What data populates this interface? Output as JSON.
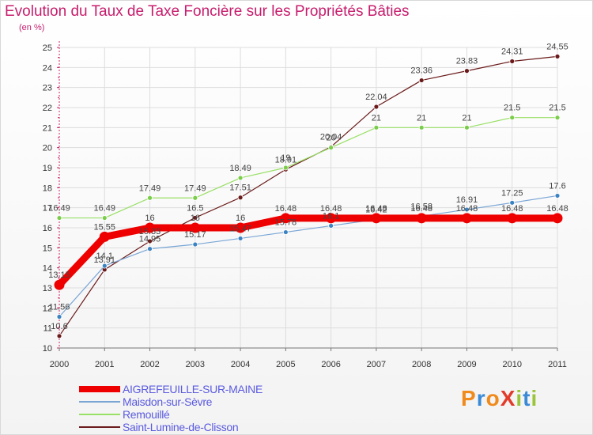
{
  "title": "Evolution du Taux de Taxe Foncière sur les Propriétés Bâties",
  "unit_label": "(en %)",
  "logo_text": "ProXiti",
  "colors": {
    "title": "#c71d6d",
    "grid": "#dddddd",
    "axis": "#cc2266",
    "legend_text": "#5a5ae0"
  },
  "chart_data": {
    "type": "line",
    "x": [
      "2000",
      "2001",
      "2002",
      "2003",
      "2004",
      "2005",
      "2006",
      "2007",
      "2008",
      "2009",
      "2010",
      "2011"
    ],
    "ylim": [
      10,
      25
    ],
    "yticks": [
      "10",
      "11",
      "12",
      "13",
      "14",
      "15",
      "16",
      "17",
      "18",
      "19",
      "20",
      "21",
      "22",
      "23",
      "24",
      "25"
    ],
    "grid": true,
    "legend_position": "bottom",
    "series": [
      {
        "name": "Saint-Lumine-de-Clisson",
        "color": "#6b1a1a",
        "marker": "#6b1a1a",
        "thick": false,
        "values": [
          10.6,
          13.91,
          15.33,
          16.5,
          17.51,
          18.91,
          20.04,
          22.04,
          23.36,
          23.83,
          24.31,
          24.55
        ],
        "labels": [
          "10.6",
          "13.91",
          "15.33",
          "16.5",
          "17.51",
          "18.91",
          "20.04",
          "22.04",
          "23.36",
          "23.83",
          "24.31",
          "24.55"
        ]
      },
      {
        "name": "Maisdon-sur-Sèvre",
        "color": "#7aa6d6",
        "marker": "#3b83c0",
        "thick": false,
        "values": [
          11.56,
          14.1,
          14.95,
          15.17,
          15.47,
          15.78,
          16.1,
          16.42,
          16.58,
          16.91,
          17.25,
          17.6
        ],
        "labels": [
          "11.56",
          "14.1",
          "14.95",
          "15.17",
          "15.47",
          "15.78",
          "16.1",
          "16.42",
          "16.58",
          "16.91",
          "17.25",
          "17.6"
        ]
      },
      {
        "name": "Remouillé",
        "color": "#99e066",
        "marker": "#7acc4a",
        "thick": false,
        "values": [
          16.49,
          16.49,
          17.49,
          17.49,
          18.49,
          19,
          20,
          21,
          21,
          21,
          21.5,
          21.5
        ],
        "labels": [
          "16.49",
          "16.49",
          "17.49",
          "17.49",
          "18.49",
          "19",
          "20",
          "21",
          "21",
          "21",
          "21.5",
          "21.5"
        ]
      },
      {
        "name": "AIGREFEUILLE-SUR-MAINE",
        "color": "#ee0000",
        "marker": "#ee0000",
        "thick": true,
        "values": [
          13.15,
          15.55,
          16,
          16,
          16,
          16.48,
          16.48,
          16.48,
          16.48,
          16.48,
          16.48,
          16.48
        ],
        "labels": [
          "13.15",
          "15.55",
          "16",
          "16",
          "16",
          "16.48",
          "16.48",
          "16.48",
          "16.48",
          "16.48",
          "16.48",
          "16.48"
        ]
      }
    ],
    "legend_order": [
      "AIGREFEUILLE-SUR-MAINE",
      "Maisdon-sur-Sèvre",
      "Remouillé",
      "Saint-Lumine-de-Clisson"
    ]
  }
}
